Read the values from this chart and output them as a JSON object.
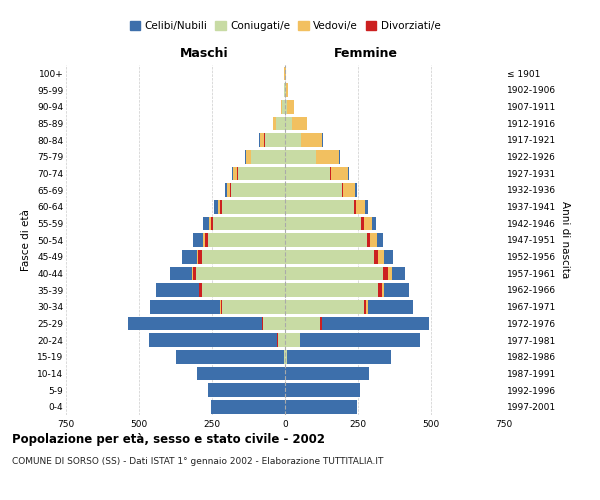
{
  "age_groups": [
    "0-4",
    "5-9",
    "10-14",
    "15-19",
    "20-24",
    "25-29",
    "30-34",
    "35-39",
    "40-44",
    "45-49",
    "50-54",
    "55-59",
    "60-64",
    "65-69",
    "70-74",
    "75-79",
    "80-84",
    "85-89",
    "90-94",
    "95-99",
    "100+"
  ],
  "birth_years": [
    "1997-2001",
    "1992-1996",
    "1987-1991",
    "1982-1986",
    "1977-1981",
    "1972-1976",
    "1967-1971",
    "1962-1966",
    "1957-1961",
    "1952-1956",
    "1947-1951",
    "1942-1946",
    "1937-1941",
    "1932-1936",
    "1927-1931",
    "1922-1926",
    "1917-1921",
    "1912-1916",
    "1907-1911",
    "1902-1906",
    "≤ 1901"
  ],
  "males": {
    "celibi": [
      255,
      265,
      300,
      370,
      440,
      460,
      240,
      145,
      75,
      50,
      35,
      22,
      15,
      8,
      5,
      3,
      2,
      1,
      0,
      0,
      0
    ],
    "coniugati": [
      0,
      0,
      0,
      5,
      25,
      75,
      215,
      285,
      305,
      285,
      265,
      245,
      215,
      185,
      160,
      115,
      70,
      30,
      10,
      3,
      1
    ],
    "vedovi": [
      0,
      0,
      0,
      0,
      0,
      0,
      2,
      3,
      4,
      5,
      5,
      5,
      7,
      9,
      15,
      18,
      15,
      10,
      4,
      2,
      1
    ],
    "divorziati": [
      0,
      0,
      0,
      0,
      2,
      3,
      5,
      8,
      10,
      12,
      10,
      9,
      7,
      4,
      3,
      2,
      1,
      0,
      0,
      0,
      0
    ]
  },
  "females": {
    "nubili": [
      245,
      258,
      288,
      355,
      410,
      365,
      155,
      85,
      45,
      32,
      22,
      15,
      10,
      6,
      4,
      2,
      1,
      0,
      0,
      0,
      0
    ],
    "coniugate": [
      0,
      0,
      0,
      8,
      50,
      120,
      270,
      320,
      335,
      305,
      280,
      260,
      235,
      195,
      155,
      105,
      55,
      25,
      8,
      2,
      0
    ],
    "vedove": [
      0,
      0,
      0,
      0,
      0,
      2,
      5,
      8,
      12,
      18,
      22,
      28,
      30,
      40,
      58,
      78,
      72,
      52,
      22,
      8,
      2
    ],
    "divorziate": [
      0,
      0,
      0,
      0,
      2,
      5,
      8,
      12,
      18,
      15,
      12,
      10,
      8,
      5,
      3,
      2,
      1,
      0,
      0,
      0,
      0
    ]
  },
  "color_celibi": "#3d6fab",
  "color_coniugati": "#c8dba4",
  "color_vedovi": "#f2c060",
  "color_divorziati": "#cc2020",
  "title": "Popolazione per età, sesso e stato civile - 2002",
  "subtitle": "COMUNE DI SORSO (SS) - Dati ISTAT 1° gennaio 2002 - Elaborazione TUTTITALIA.IT",
  "label_maschi": "Maschi",
  "label_femmine": "Femmine",
  "ylabel_left": "Fasce di età",
  "ylabel_right": "Anni di nascita",
  "xlim": 750,
  "xticks": [
    -750,
    -500,
    -250,
    0,
    250,
    500,
    750
  ],
  "background_color": "#ffffff",
  "grid_color": "#cccccc",
  "legend_labels": [
    "Celibi/Nubili",
    "Coniugati/e",
    "Vedovi/e",
    "Divorziati/e"
  ]
}
